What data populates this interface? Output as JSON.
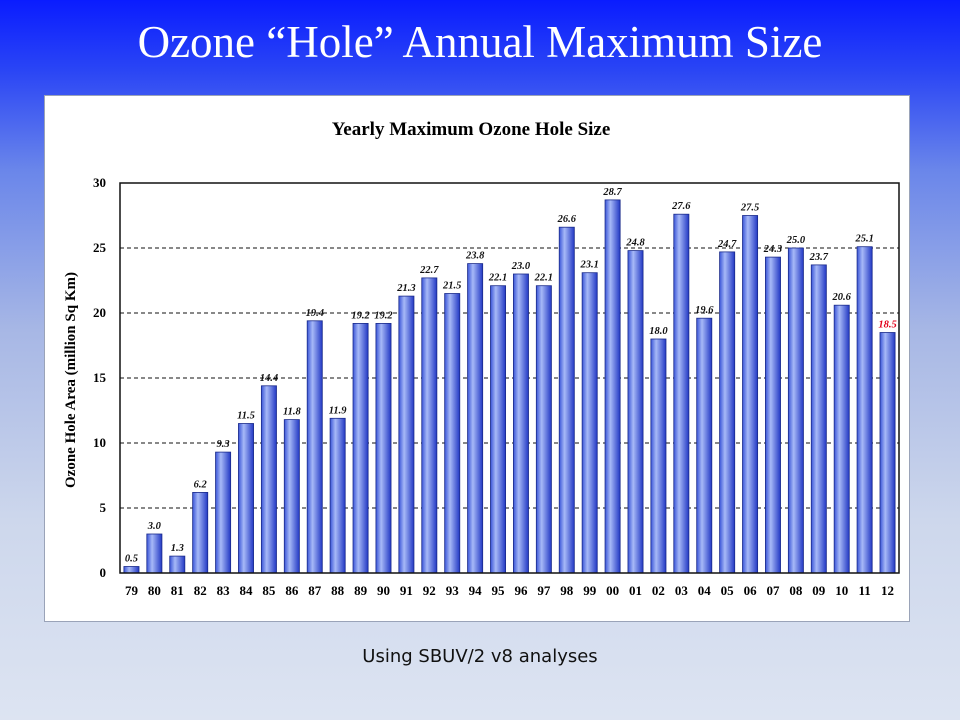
{
  "slide": {
    "title": "Ozone “Hole” Annual Maximum Size",
    "caption": "Using SBUV/2 v8 analyses"
  },
  "colors": {
    "bar_top": "#3a55d8",
    "bar_light": "#a7b9f7",
    "bar_dark": "#2238c4",
    "highlight_label": "#e3001b",
    "label": "#111111"
  },
  "chart_data": {
    "type": "bar",
    "title": "Yearly Maximum Ozone Hole Size",
    "xlabel": "",
    "ylabel": "Ozone Hole Area (million Sq Km)",
    "ylim": [
      0,
      30
    ],
    "yticks": [
      0,
      5,
      10,
      15,
      20,
      25,
      30
    ],
    "grid": "dashed horizontal",
    "categories": [
      "79",
      "80",
      "81",
      "82",
      "83",
      "84",
      "85",
      "86",
      "87",
      "88",
      "89",
      "90",
      "91",
      "92",
      "93",
      "94",
      "95",
      "96",
      "97",
      "98",
      "99",
      "00",
      "01",
      "02",
      "03",
      "04",
      "05",
      "06",
      "07",
      "08",
      "09",
      "10",
      "11",
      "12"
    ],
    "values": [
      0.5,
      3.0,
      1.3,
      6.2,
      9.3,
      11.5,
      14.4,
      11.8,
      19.4,
      11.9,
      19.2,
      19.2,
      21.3,
      22.7,
      21.5,
      23.8,
      22.1,
      23.0,
      22.1,
      26.6,
      23.1,
      28.7,
      24.8,
      18.0,
      27.6,
      19.6,
      24.7,
      27.5,
      24.3,
      25.0,
      23.7,
      20.6,
      25.1,
      18.5
    ],
    "data_labels": [
      "0.5",
      "3.0",
      "1.3",
      "6.2",
      "9.3",
      "11.5",
      "14.4",
      "11.8",
      "19.4",
      "11.9",
      "19.2",
      "19.2",
      "21.3",
      "22.7",
      "21.5",
      "23.8",
      "22.1",
      "23.0",
      "22.1",
      "26.6",
      "23.1",
      "28.7",
      "24.8",
      "18.0",
      "27.6",
      "19.6",
      "24.7",
      "27.5",
      "24.3",
      "25.0",
      "23.7",
      "20.6",
      "25.1",
      "18.5"
    ],
    "highlighted": [
      "12"
    ]
  }
}
